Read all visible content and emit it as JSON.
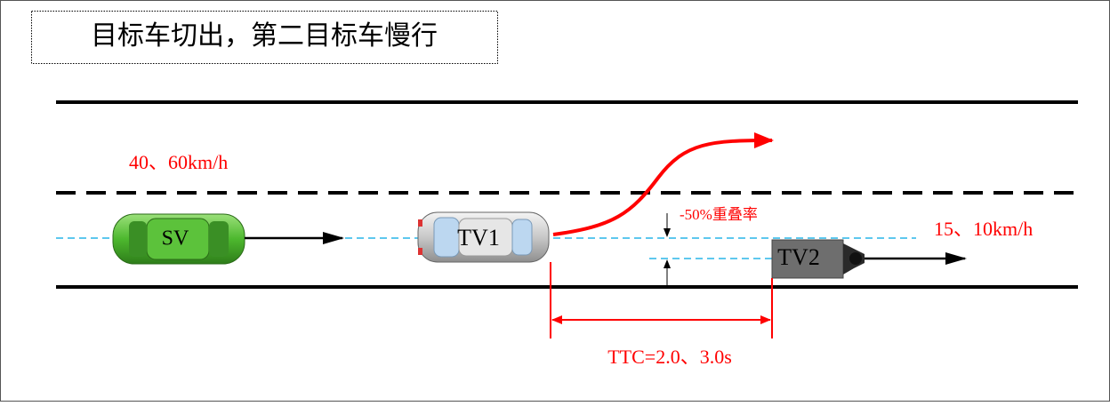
{
  "title": "目标车切出，第二目标车慢行",
  "vehicles": [
    {
      "label": "SV"
    },
    {
      "label": "TV1"
    },
    {
      "label": "TV2"
    }
  ],
  "annotations": {
    "sv_speed": "40、60km/h",
    "overlap": "-50%重叠率",
    "tv2_speed": "15、10km/h",
    "ttc": "TTC=2.0、3.0s"
  }
}
